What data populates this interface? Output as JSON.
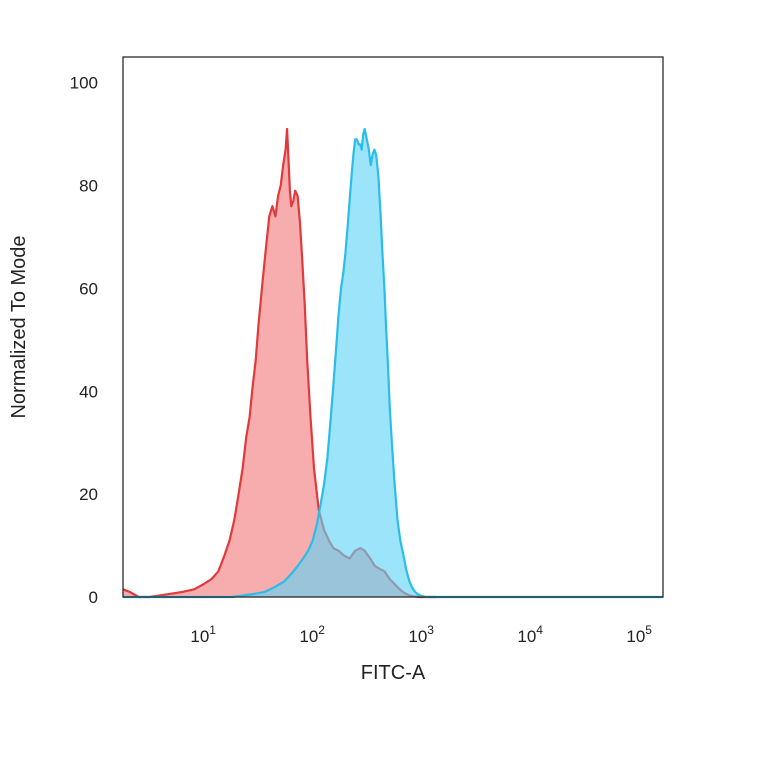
{
  "chart_data": {
    "type": "area",
    "title": "",
    "xlabel": "FITC-A",
    "ylabel": "Normalized To Mode",
    "x_scale": "log",
    "xlim": [
      2,
      180000
    ],
    "ylim": [
      0,
      105
    ],
    "y_ticks": [
      {
        "value": 0,
        "label": "0"
      },
      {
        "value": 20,
        "label": "20"
      },
      {
        "value": 40,
        "label": "40"
      },
      {
        "value": 60,
        "label": "60"
      },
      {
        "value": 80,
        "label": "80"
      },
      {
        "value": 100,
        "label": "100"
      }
    ],
    "x_ticks": [
      {
        "value": 10,
        "base": "10",
        "exp": "1"
      },
      {
        "value": 100,
        "base": "10",
        "exp": "2"
      },
      {
        "value": 1000,
        "base": "10",
        "exp": "3"
      },
      {
        "value": 10000,
        "base": "10",
        "exp": "4"
      },
      {
        "value": 100000,
        "base": "10",
        "exp": "5"
      }
    ],
    "grid": false,
    "legend": "none",
    "series": [
      {
        "color_fill": "#f48c8f",
        "color_line": "#e03a3c",
        "fill_opacity": 0.72,
        "x": [
          2,
          2.3,
          2.8,
          3.5,
          5,
          7,
          9,
          11,
          13,
          15,
          17,
          19,
          21,
          23,
          25,
          27,
          29,
          31,
          33,
          35,
          38,
          41,
          44,
          47,
          50,
          53,
          56,
          59,
          62,
          64,
          66,
          68,
          70,
          73,
          76,
          80,
          84,
          88,
          93,
          98,
          105,
          113,
          125,
          140,
          155,
          170,
          190,
          215,
          240,
          270,
          300,
          330,
          370,
          410,
          450,
          500,
          560,
          620,
          690,
          760,
          850,
          950,
          1050,
          1200,
          1500
        ],
        "y": [
          1.5,
          1.0,
          0,
          0,
          0.5,
          1.0,
          1.5,
          2.5,
          3.5,
          5,
          8,
          11,
          15,
          20,
          25,
          31,
          35,
          41,
          46,
          53,
          61,
          68,
          74,
          76,
          74,
          78,
          80,
          84,
          87,
          91,
          85,
          79,
          76,
          77,
          79,
          78,
          73,
          66,
          57,
          46,
          35,
          25,
          17,
          13,
          11,
          9.5,
          9,
          8,
          7.5,
          9,
          9.5,
          9,
          7.5,
          6,
          5.5,
          5,
          3.5,
          2.5,
          1.5,
          0.8,
          0.3,
          0.1,
          0,
          0,
          0
        ]
      },
      {
        "color_fill": "#5fd4f5",
        "color_line": "#2bbde8",
        "fill_opacity": 0.62,
        "x": [
          2,
          10,
          20,
          30,
          40,
          50,
          60,
          70,
          80,
          90,
          100,
          110,
          120,
          130,
          140,
          150,
          160,
          170,
          180,
          190,
          200,
          210,
          220,
          230,
          240,
          250,
          260,
          270,
          280,
          290,
          300,
          310,
          320,
          330,
          345,
          360,
          375,
          390,
          405,
          420,
          440,
          460,
          480,
          500,
          520,
          540,
          560,
          590,
          620,
          660,
          700,
          750,
          800,
          850,
          900,
          960,
          1020,
          1100,
          1200,
          1300,
          1450,
          1600,
          1800,
          2000,
          180000
        ],
        "y": [
          0,
          0,
          0,
          0.5,
          1,
          2,
          3,
          4.5,
          6,
          7.5,
          9,
          11,
          14,
          18,
          22,
          27,
          34,
          41,
          48,
          55,
          60,
          63,
          67,
          72,
          77,
          82,
          86,
          89,
          89,
          88,
          88,
          87,
          90,
          91,
          89,
          87,
          84,
          86,
          87,
          86,
          82,
          75,
          67,
          60,
          52,
          45,
          37,
          29,
          22,
          15,
          11,
          8,
          5,
          3,
          1.8,
          1,
          0.5,
          0.2,
          0,
          0,
          0,
          0,
          0,
          0,
          0
        ]
      }
    ]
  }
}
